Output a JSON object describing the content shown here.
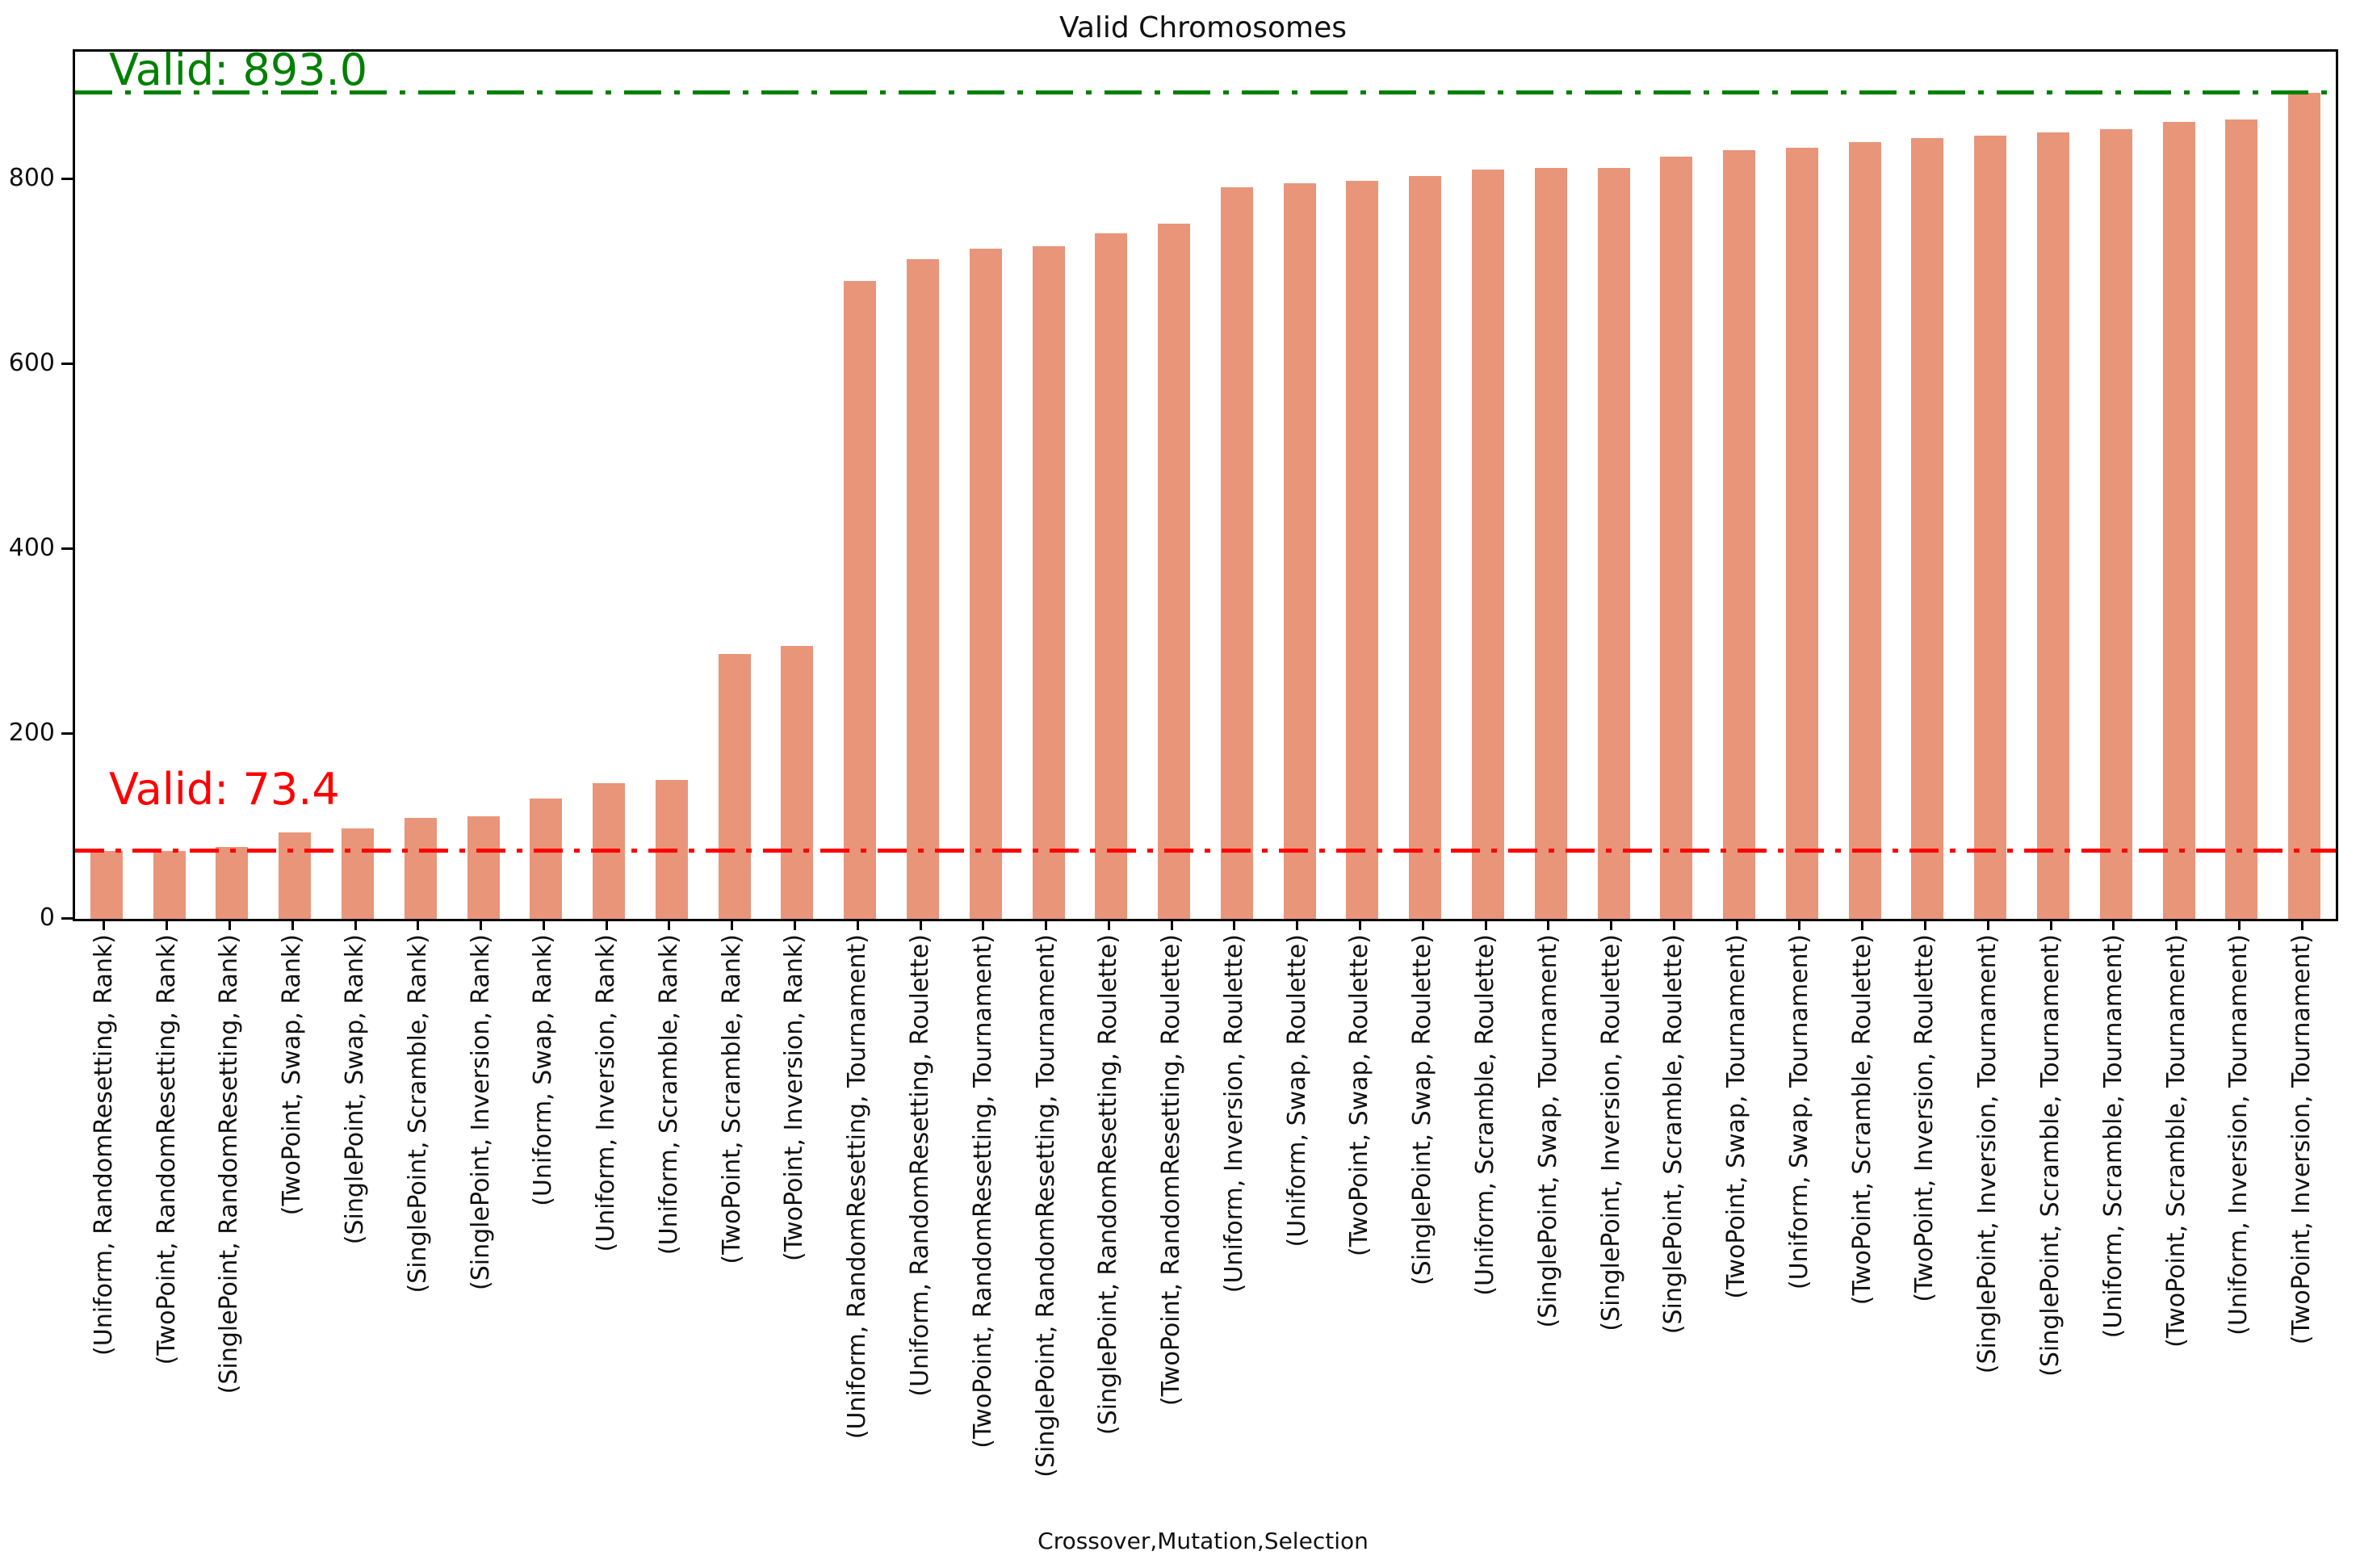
{
  "annotations": {
    "max": {
      "label": "Valid: 893.0",
      "value": 893.0,
      "color": "#008000"
    },
    "min": {
      "label": "Valid: 73.4",
      "value": 73.4,
      "color": "#ff0000"
    }
  },
  "colors": {
    "bar": "#e8957a",
    "max_line": "#008000",
    "min_line": "#ff0000",
    "spine": "#000000",
    "text": "#111111"
  },
  "chart_data": {
    "type": "bar",
    "title": "Valid Chromosomes",
    "xlabel": "Crossover,Mutation,Selection",
    "ylabel": "",
    "ylim": [
      0,
      937.65
    ],
    "yticks": [
      0,
      200,
      400,
      600,
      800
    ],
    "grid": false,
    "legend": "none",
    "bar_color": "#e8957a",
    "categories": [
      "(Uniform, RandomResetting, Rank)",
      "(TwoPoint, RandomResetting, Rank)",
      "(SinglePoint, RandomResetting, Rank)",
      "(TwoPoint, Swap, Rank)",
      "(SinglePoint, Swap, Rank)",
      "(SinglePoint, Scramble, Rank)",
      "(SinglePoint, Inversion, Rank)",
      "(Uniform, Swap, Rank)",
      "(Uniform, Inversion, Rank)",
      "(Uniform, Scramble, Rank)",
      "(TwoPoint, Scramble, Rank)",
      "(TwoPoint, Inversion, Rank)",
      "(Uniform, RandomResetting, Tournament)",
      "(Uniform, RandomResetting, Roulette)",
      "(TwoPoint, RandomResetting, Tournament)",
      "(SinglePoint, RandomResetting, Tournament)",
      "(SinglePoint, RandomResetting, Roulette)",
      "(TwoPoint, RandomResetting, Roulette)",
      "(Uniform, Inversion, Roulette)",
      "(Uniform, Swap, Roulette)",
      "(TwoPoint, Swap, Roulette)",
      "(SinglePoint, Swap, Roulette)",
      "(Uniform, Scramble, Roulette)",
      "(SinglePoint, Swap, Tournament)",
      "(SinglePoint, Inversion, Roulette)",
      "(SinglePoint, Scramble, Roulette)",
      "(TwoPoint, Swap, Tournament)",
      "(Uniform, Swap, Tournament)",
      "(TwoPoint, Scramble, Roulette)",
      "(TwoPoint, Inversion, Roulette)",
      "(SinglePoint, Inversion, Tournament)",
      "(SinglePoint, Scramble, Tournament)",
      "(Uniform, Scramble, Tournament)",
      "(TwoPoint, Scramble, Tournament)",
      "(Uniform, Inversion, Tournament)",
      "(TwoPoint, Inversion, Tournament)"
    ],
    "values": [
      73,
      73,
      78,
      93,
      98,
      109,
      111,
      130,
      147,
      150,
      286,
      295,
      690,
      713,
      725,
      727,
      741,
      752,
      791,
      795,
      798,
      803,
      810,
      812,
      812,
      824,
      831,
      834,
      840,
      844,
      847,
      850,
      854,
      862,
      864,
      893
    ],
    "hlines": [
      {
        "y": 893.0,
        "label": "Valid: 893.0",
        "color": "#008000",
        "style": "dashdot"
      },
      {
        "y": 73.4,
        "label": "Valid: 73.4",
        "color": "#ff0000",
        "style": "dashdot"
      }
    ]
  }
}
